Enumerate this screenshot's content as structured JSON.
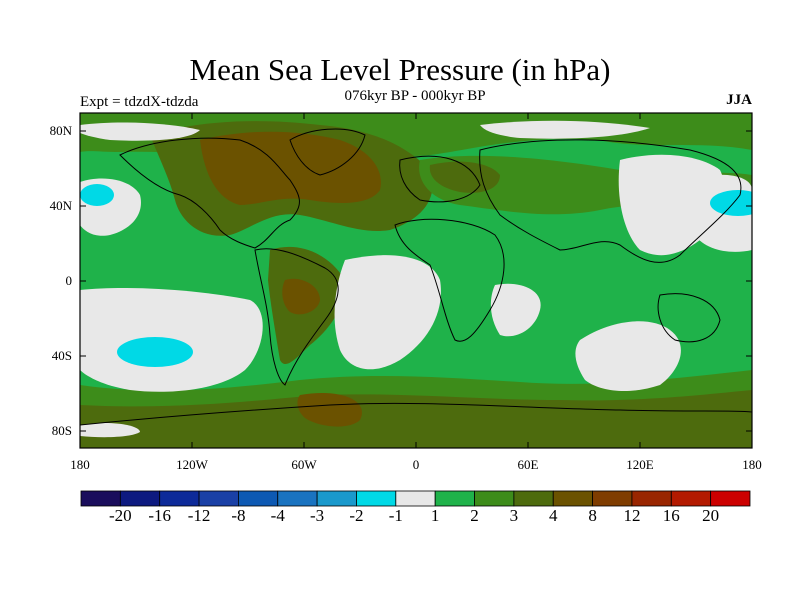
{
  "header": {
    "title": "Mean Sea Level Pressure (in hPa)",
    "subtitle": "076kyr BP - 000kyr BP",
    "experiment": "Expt = tdzdX-tdzda",
    "season": "JJA"
  },
  "map": {
    "lat_labels": [
      "80N",
      "40N",
      "0",
      "40S",
      "80S"
    ],
    "lon_labels": [
      "180",
      "120W",
      "60W",
      "0",
      "60E",
      "120E",
      "180"
    ]
  },
  "colorbar": {
    "colors": [
      "#1a0d5c",
      "#0d1a80",
      "#0d2a99",
      "#1a40a6",
      "#0d59b3",
      "#1a73c0",
      "#1a99cc",
      "#00d9e6",
      "#e8e8e8",
      "#1fb24a",
      "#3d8c1a",
      "#4d6b0d",
      "#6b5200",
      "#7f3d00",
      "#992600",
      "#b31a00",
      "#cc0000"
    ],
    "labels": [
      "-20",
      "-16",
      "-12",
      "-8",
      "-4",
      "-3",
      "-2",
      "-1",
      "1",
      "2",
      "3",
      "4",
      "8",
      "12",
      "16",
      "20"
    ]
  },
  "colors": {
    "positive_weak": "#1fb24a",
    "positive_mid": "#3d8c1a",
    "positive_strong": "#4d6b0d",
    "positive_high": "#6b5200",
    "neutral": "#e8e8e8",
    "negative_weak": "#00d9e6"
  }
}
